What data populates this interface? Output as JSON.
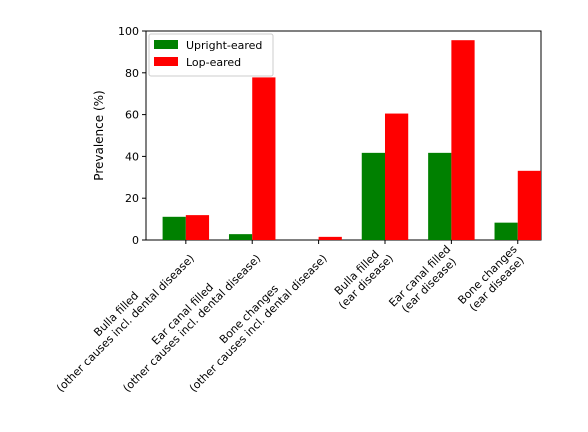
{
  "chart_data": {
    "type": "bar",
    "title": "",
    "xlabel": "",
    "ylabel": "Prevalence (%)",
    "ylim": [
      0,
      100
    ],
    "yticks": [
      0,
      20,
      40,
      60,
      80,
      100
    ],
    "grid": false,
    "legend_position": "top-left",
    "categories": [
      [
        "Bulla filled",
        "(other causes incl. dental disease)"
      ],
      [
        "Ear canal filled",
        "(other causes incl. dental disease)"
      ],
      [
        "Bone changes",
        "(other causes incl. dental disease)"
      ],
      [
        "Bulla filled",
        "(ear disease)"
      ],
      [
        "Ear canal filled",
        "(ear disease)"
      ],
      [
        "Bone changes",
        "(ear disease)"
      ]
    ],
    "series": [
      {
        "name": "Upright-eared",
        "color": "#008000",
        "values": [
          11.1,
          2.8,
          0,
          41.7,
          41.7,
          8.3
        ]
      },
      {
        "name": "Lop-eared",
        "color": "#ff0000",
        "values": [
          11.9,
          77.8,
          1.5,
          60.5,
          95.6,
          33.1
        ]
      }
    ]
  }
}
